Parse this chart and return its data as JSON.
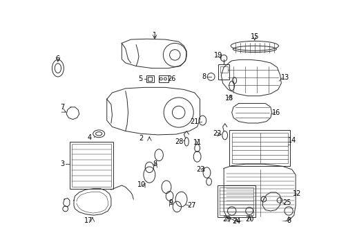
{
  "bg_color": "#ffffff",
  "fig_width": 4.89,
  "fig_height": 3.6,
  "dpi": 100,
  "line_color": "#2a2a2a",
  "lw": 0.7
}
